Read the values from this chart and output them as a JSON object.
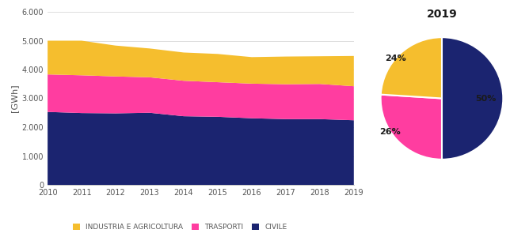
{
  "years": [
    2010,
    2011,
    2012,
    2013,
    2014,
    2015,
    2016,
    2017,
    2018,
    2019
  ],
  "civile": [
    2530,
    2490,
    2480,
    2500,
    2380,
    2360,
    2310,
    2280,
    2280,
    2240
  ],
  "trasporti": [
    1300,
    1310,
    1280,
    1230,
    1230,
    1200,
    1200,
    1210,
    1220,
    1180
  ],
  "industria": [
    1170,
    1200,
    1070,
    1000,
    980,
    980,
    920,
    960,
    960,
    1050
  ],
  "pie_values": [
    50,
    26,
    24
  ],
  "pie_colors": [
    "#1b2470",
    "#ff3da0",
    "#f5be2e"
  ],
  "area_colors": [
    "#1b2470",
    "#ff3da0",
    "#f5be2e"
  ],
  "ylim": [
    0,
    6000
  ],
  "yticks": [
    0,
    1000,
    2000,
    3000,
    4000,
    5000,
    6000
  ],
  "ytick_labels": [
    "0",
    "1.000",
    "2.000",
    "3.000",
    "4.000",
    "5.000",
    "6.000"
  ],
  "ylabel": "[GWh]",
  "legend_labels": [
    "INDUSTRIA E AGRICOLTURA",
    "TRASPORTI",
    "CIVILE"
  ],
  "pie_title": "2019",
  "background_color": "#ffffff",
  "grid_color": "#d0d0d0"
}
